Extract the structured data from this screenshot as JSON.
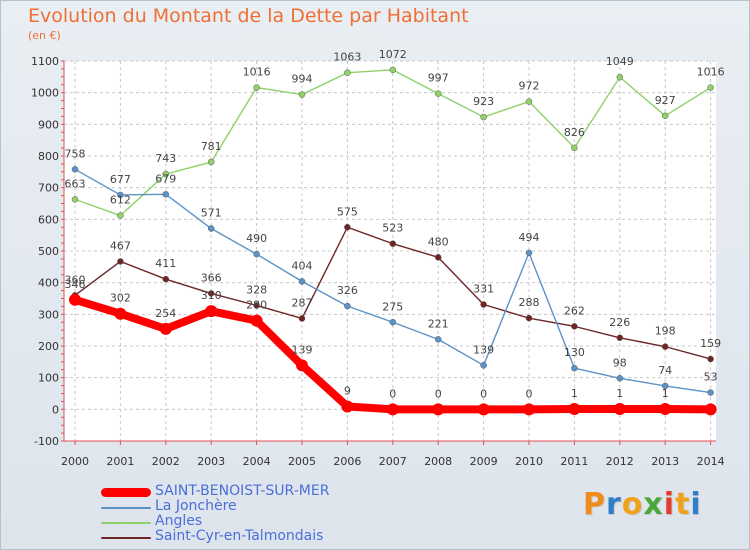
{
  "title": "Evolution du Montant de la Dette par Habitant",
  "subtitle": "(en €)",
  "brand": {
    "letters": [
      "P",
      "r",
      "o",
      "x",
      "i",
      "t",
      "i"
    ],
    "colors": [
      "#f08c1c",
      "#2e7fc7",
      "#f0a21c",
      "#4aa83a",
      "#e23b2f",
      "#f0a21c",
      "#2e7fc7"
    ]
  },
  "chart_data": {
    "type": "line",
    "title": "Evolution du Montant de la Dette par Habitant",
    "subtitle": "(en €)",
    "x": [
      "2000",
      "2001",
      "2002",
      "2003",
      "2004",
      "2005",
      "2006",
      "2007",
      "2008",
      "2009",
      "2010",
      "2011",
      "2012",
      "2013",
      "2014"
    ],
    "ylim": [
      -100,
      1100
    ],
    "yticks": [
      "-100",
      "0",
      "100",
      "200",
      "300",
      "400",
      "500",
      "600",
      "700",
      "800",
      "900",
      "1000",
      "1100"
    ],
    "grid": true,
    "legend_position": "bottom-left",
    "series": [
      {
        "name": "SAINT-BENOIST-SUR-MER",
        "color": "#ff0000",
        "values": [
          346,
          302,
          254,
          310,
          280,
          139,
          9,
          0,
          0,
          0,
          0,
          1,
          1,
          1,
          0
        ],
        "labels": [
          "346",
          "302",
          "254",
          "310",
          "280",
          "139",
          "9",
          "0",
          "0",
          "0",
          "0",
          "1",
          "1",
          "1",
          ""
        ]
      },
      {
        "name": "La Jonchère",
        "color": "#5b93c7",
        "values": [
          758,
          677,
          679,
          571,
          490,
          404,
          326,
          275,
          221,
          139,
          494,
          130,
          98,
          74,
          53
        ],
        "labels": [
          "758",
          "677",
          "679",
          "571",
          "490",
          "404",
          "326",
          "275",
          "221",
          "139",
          "494",
          "130",
          "98",
          "74",
          "53"
        ]
      },
      {
        "name": "Angles",
        "color": "#90d16a",
        "values": [
          663,
          612,
          743,
          781,
          1016,
          994,
          1063,
          1072,
          997,
          923,
          972,
          826,
          1049,
          927,
          1016
        ],
        "labels": [
          "663",
          "612",
          "743",
          "781",
          "1016",
          "994",
          "1063",
          "1072",
          "997",
          "923",
          "972",
          "826",
          "1049",
          "927",
          "1016"
        ]
      },
      {
        "name": "Saint-Cyr-en-Talmondais",
        "color": "#6f2525",
        "values": [
          360,
          467,
          411,
          366,
          328,
          287,
          575,
          523,
          480,
          331,
          288,
          262,
          226,
          198,
          159
        ],
        "labels": [
          "360",
          "467",
          "411",
          "366",
          "328",
          "287",
          "575",
          "523",
          "480",
          "331",
          "288",
          "262",
          "226",
          "198",
          "159"
        ]
      }
    ]
  }
}
